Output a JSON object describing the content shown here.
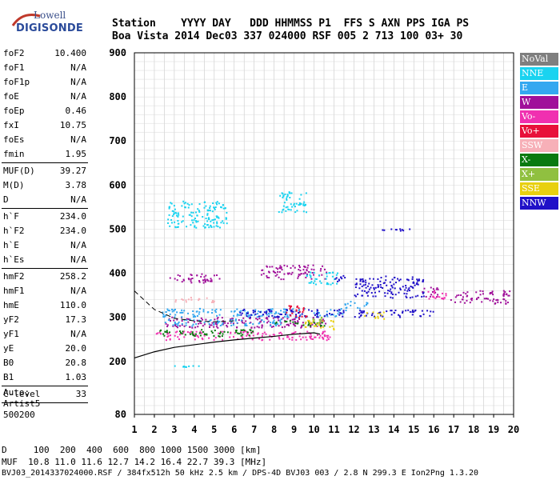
{
  "logo": {
    "line1": "Lowell",
    "line2": "DIGISONDE"
  },
  "header": {
    "labels": "Station    YYYY DAY   DDD HHMMSS P1  FFS S AXN PPS IGA PS",
    "values": "Boa Vista 2014 Dec03 337 024000 RSF 005 2 713 100 03+ 30"
  },
  "params": [
    {
      "k": "foF2",
      "v": "10.400"
    },
    {
      "k": "foF1",
      "v": "N/A"
    },
    {
      "k": "foF1p",
      "v": "N/A"
    },
    {
      "k": "foE",
      "v": "N/A"
    },
    {
      "k": "foEp",
      "v": "0.46"
    },
    {
      "k": "fxI",
      "v": "10.75"
    },
    {
      "k": "foEs",
      "v": "N/A"
    },
    {
      "k": "fmin",
      "v": "1.95"
    },
    {
      "k": "MUF(D)",
      "v": "39.27"
    },
    {
      "k": "M(D)",
      "v": "3.78"
    },
    {
      "k": "D",
      "v": "N/A"
    },
    {
      "k": "h`F",
      "v": "234.0"
    },
    {
      "k": "h`F2",
      "v": "234.0"
    },
    {
      "k": "h`E",
      "v": "N/A"
    },
    {
      "k": "h`Es",
      "v": "N/A"
    },
    {
      "k": "hmF2",
      "v": "258.2"
    },
    {
      "k": "hmF1",
      "v": "N/A"
    },
    {
      "k": "hmE",
      "v": "110.0"
    },
    {
      "k": "yF2",
      "v": "17.3"
    },
    {
      "k": "yF1",
      "v": "N/A"
    },
    {
      "k": "yE",
      "v": "20.0"
    },
    {
      "k": "B0",
      "v": "20.8"
    },
    {
      "k": "B1",
      "v": "1.03"
    },
    {
      "k": "C-level",
      "v": "33"
    }
  ],
  "auto": {
    "l1": "Auto:",
    "l2": "Artist5",
    "l3": "500200"
  },
  "legend": [
    {
      "label": "NoVal",
      "color": "#7f7f7f"
    },
    {
      "label": "NNE",
      "color": "#1ad3f0"
    },
    {
      "label": "E",
      "color": "#34a8f0"
    },
    {
      "label": "W",
      "color": "#a0109a"
    },
    {
      "label": "Vo-",
      "color": "#f030b0"
    },
    {
      "label": "Vo+",
      "color": "#e8103a"
    },
    {
      "label": "SSW",
      "color": "#f7b0b8"
    },
    {
      "label": "X-",
      "color": "#0a7a10"
    },
    {
      "label": "X+",
      "color": "#90c040"
    },
    {
      "label": "SSE",
      "color": "#e8d010"
    },
    {
      "label": "NNW",
      "color": "#2010c8"
    }
  ],
  "chart_data": {
    "type": "scatter",
    "xlim": [
      1,
      20
    ],
    "ylim": [
      80,
      900
    ],
    "xticks": [
      "1",
      "2",
      "3",
      "4",
      "5",
      "6",
      "7",
      "8",
      "9",
      "10",
      "11",
      "12",
      "13",
      "14",
      "15",
      "16",
      "17",
      "18",
      "19",
      "20"
    ],
    "yticks": [
      "80",
      "200",
      "300",
      "400",
      "500",
      "600",
      "700",
      "800",
      "900"
    ],
    "grid": true,
    "curves": {
      "dashed": [
        [
          1,
          360
        ],
        [
          2,
          318
        ],
        [
          3,
          298
        ],
        [
          4,
          292
        ],
        [
          5,
          290
        ],
        [
          6,
          292
        ]
      ],
      "solid": [
        [
          1,
          208
        ],
        [
          2,
          222
        ],
        [
          3,
          232
        ],
        [
          4,
          238
        ],
        [
          5,
          244
        ],
        [
          6,
          249
        ],
        [
          7,
          253
        ],
        [
          8,
          257
        ],
        [
          9,
          262
        ],
        [
          10,
          265
        ],
        [
          10.3,
          262
        ]
      ]
    },
    "series": [
      {
        "name": "W",
        "color": "#a0109a",
        "bands": [
          [
            2.7,
            5.3,
            380,
            400
          ],
          [
            7.3,
            10.6,
            388,
            420
          ],
          [
            2.5,
            10.6,
            278,
            302
          ],
          [
            16.8,
            19.8,
            332,
            362
          ],
          [
            15.4,
            16.2,
            348,
            372
          ]
        ]
      },
      {
        "name": "E",
        "color": "#34a8f0",
        "bands": [
          [
            2.3,
            11.6,
            302,
            322
          ],
          [
            2.5,
            8.5,
            282,
            298
          ],
          [
            11.5,
            12.7,
            322,
            338
          ]
        ]
      },
      {
        "name": "NNE",
        "color": "#1ad3f0",
        "bands": [
          [
            2.6,
            5.6,
            505,
            565
          ],
          [
            2.5,
            4.2,
            188,
            192
          ],
          [
            8.2,
            9.6,
            540,
            590
          ],
          [
            9.5,
            11.2,
            376,
            404
          ]
        ]
      },
      {
        "name": "NNW",
        "color": "#2010c8",
        "bands": [
          [
            6.2,
            11.6,
            302,
            320
          ],
          [
            12,
            15.5,
            345,
            395
          ],
          [
            11,
            11.8,
            382,
            396
          ],
          [
            13.4,
            15.1,
            498,
            502
          ],
          [
            12,
            16,
            302,
            318
          ]
        ]
      },
      {
        "name": "Vo-",
        "color": "#f030b0",
        "bands": [
          [
            2,
            10.8,
            250,
            270
          ],
          [
            15.6,
            16.6,
            342,
            366
          ]
        ]
      },
      {
        "name": "X-",
        "color": "#0a7a10",
        "bands": [
          [
            2.1,
            7,
            258,
            274
          ],
          [
            8,
            10.5,
            282,
            294
          ]
        ]
      },
      {
        "name": "SSE",
        "color": "#e8d010",
        "bands": [
          [
            9.5,
            11,
            274,
            296
          ],
          [
            12.5,
            13.5,
            298,
            314
          ]
        ]
      },
      {
        "name": "Vo+",
        "color": "#e8103a",
        "bands": [
          [
            8.5,
            9.6,
            300,
            328
          ]
        ]
      },
      {
        "name": "X+",
        "color": "#90c040",
        "bands": [
          [
            9.8,
            10.6,
            286,
            302
          ]
        ]
      },
      {
        "name": "SSW",
        "color": "#f7b0b8",
        "bands": [
          [
            3,
            5,
            336,
            348
          ]
        ]
      }
    ]
  },
  "bottom": {
    "l1": "D     100  200  400  600  800 1000 1500 3000 [km]",
    "l2": "MUF  10.8 11.0 11.6 12.7 14.2 16.4 22.7 39.3 [MHz]",
    "l3": "BVJ03_2014337024000.RSF / 384fx512h 50 kHz 2.5 km / DPS-4D BVJ03 003 / 2.8 N 299.3 E Ion2Png 1.3.20"
  }
}
